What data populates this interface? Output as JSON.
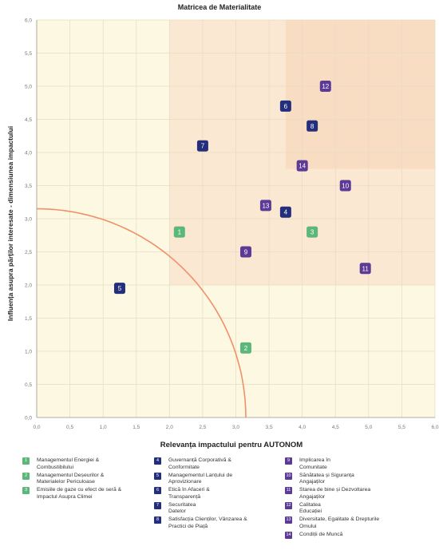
{
  "chart_data": {
    "type": "scatter",
    "title": "Matricea de Materialitate",
    "xlabel": "Relevanța impactului pentru AUTONOM",
    "ylabel": "Influența asupra părților interesate - dimensiunea impactului",
    "xlim": [
      0,
      6
    ],
    "ylim": [
      0,
      6
    ],
    "x_ticks": [
      "0,0",
      "0,5",
      "1,0",
      "1,5",
      "2,0",
      "2,5",
      "3,0",
      "3,5",
      "4,0",
      "4,5",
      "5,0",
      "5,5",
      "6,0"
    ],
    "y_ticks": [
      "0,0",
      "0,5",
      "1,0",
      "1,5",
      "2,0",
      "2,5",
      "3,0",
      "3,5",
      "4,0",
      "4,5",
      "5,0",
      "5,5",
      "6,0"
    ],
    "grid": true,
    "zones": [
      {
        "x": [
          2.0,
          6.0
        ],
        "y": [
          2.0,
          6.0
        ],
        "color": "#fbe8d3"
      },
      {
        "x": [
          3.75,
          6.0
        ],
        "y": [
          3.75,
          6.0
        ],
        "color": "#f9ddc2"
      }
    ],
    "threshold_curve": {
      "center": [
        0,
        0
      ],
      "radius": 3.15,
      "color": "#f0906a"
    },
    "points": [
      {
        "id": "1",
        "x": 2.15,
        "y": 2.8,
        "group": "green"
      },
      {
        "id": "2",
        "x": 3.15,
        "y": 1.05,
        "group": "green"
      },
      {
        "id": "3",
        "x": 4.15,
        "y": 2.8,
        "group": "green"
      },
      {
        "id": "4",
        "x": 3.75,
        "y": 3.1,
        "group": "navy"
      },
      {
        "id": "5",
        "x": 1.25,
        "y": 1.95,
        "group": "navy"
      },
      {
        "id": "6",
        "x": 3.75,
        "y": 4.7,
        "group": "navy"
      },
      {
        "id": "7",
        "x": 2.5,
        "y": 4.1,
        "group": "navy"
      },
      {
        "id": "8",
        "x": 4.15,
        "y": 4.4,
        "group": "navy"
      },
      {
        "id": "9",
        "x": 3.15,
        "y": 2.5,
        "group": "purple"
      },
      {
        "id": "10",
        "x": 4.65,
        "y": 3.5,
        "group": "purple"
      },
      {
        "id": "11",
        "x": 4.95,
        "y": 2.25,
        "group": "purple"
      },
      {
        "id": "12",
        "x": 4.35,
        "y": 5.0,
        "group": "purple"
      },
      {
        "id": "13",
        "x": 3.45,
        "y": 3.2,
        "group": "purple"
      },
      {
        "id": "14",
        "x": 4.0,
        "y": 3.8,
        "group": "purple"
      }
    ],
    "group_colors": {
      "green": "#5cb87a",
      "navy": "#232e7d",
      "purple": "#5c3a96"
    }
  },
  "legend": {
    "col1": [
      {
        "id": "1",
        "group": "green",
        "text": "Managementul Energiei &\nCombustibilului"
      },
      {
        "id": "2",
        "group": "green",
        "text": "Managementul Deșeurilor &\nMaterialelor Periculoase"
      },
      {
        "id": "3",
        "group": "green",
        "text": "Emisiile de gaze cu efect de seră  &\nImpactul Asupra Climei"
      }
    ],
    "col2": [
      {
        "id": "4",
        "group": "navy",
        "text": "Guvernanță Corporativă &\nConformitate"
      },
      {
        "id": "5",
        "group": "navy",
        "text": "Managementul Lanțului de\nAprovizionare"
      },
      {
        "id": "6",
        "group": "navy",
        "text": "Etică în Afaceri &\nTransparență"
      },
      {
        "id": "7",
        "group": "navy",
        "text": "Securitatea\nDatelor"
      },
      {
        "id": "8",
        "group": "navy",
        "text": "Satisfacția Clienților, Vânzarea &\nPractici de Piață"
      }
    ],
    "col3": [
      {
        "id": "9",
        "group": "purple",
        "text": "Implicarea în\nComunitate"
      },
      {
        "id": "10",
        "group": "purple",
        "text": "Sănătatea și Siguranța\nAngajaților"
      },
      {
        "id": "11",
        "group": "purple",
        "text": "Starea de bine și Dezvoltarea\nAngajaților"
      },
      {
        "id": "12",
        "group": "purple",
        "text": "Calitatea\nEducației"
      },
      {
        "id": "13",
        "group": "purple",
        "text": "Diversitate, Egalitate & Drepturile\nOmului"
      },
      {
        "id": "14",
        "group": "purple",
        "text": "Condiții de Muncă"
      }
    ]
  }
}
